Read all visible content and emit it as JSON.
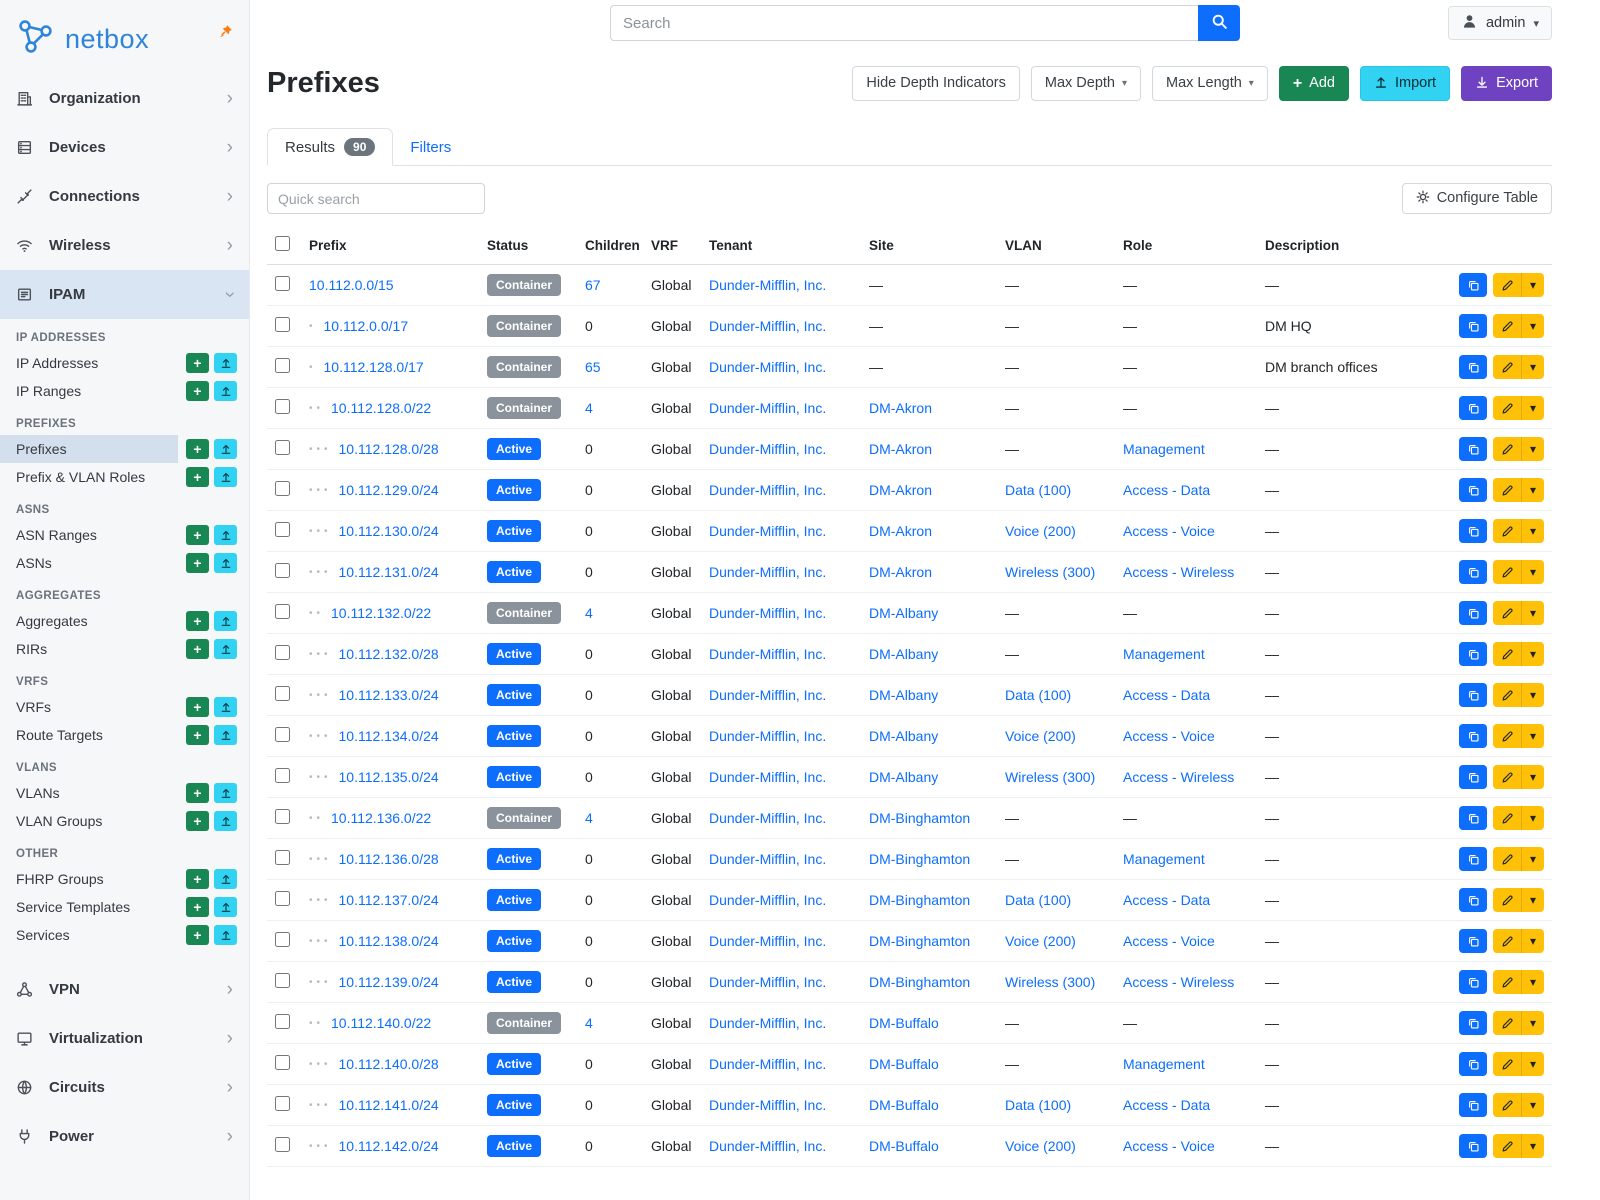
{
  "brand": {
    "name": "netbox"
  },
  "topbar": {
    "search_placeholder": "Search",
    "user": "admin"
  },
  "sidebar": {
    "top_items": [
      {
        "label": "Organization",
        "icon": "organization-icon"
      },
      {
        "label": "Devices",
        "icon": "devices-icon"
      },
      {
        "label": "Connections",
        "icon": "connections-icon"
      },
      {
        "label": "Wireless",
        "icon": "wireless-icon"
      }
    ],
    "ipam": {
      "label": "IPAM",
      "icon": "ipam-icon",
      "groups": [
        {
          "heading": "IP ADDRESSES",
          "items": [
            {
              "label": "IP Addresses"
            },
            {
              "label": "IP Ranges"
            }
          ]
        },
        {
          "heading": "PREFIXES",
          "items": [
            {
              "label": "Prefixes",
              "active": true
            },
            {
              "label": "Prefix & VLAN Roles"
            }
          ]
        },
        {
          "heading": "ASNS",
          "items": [
            {
              "label": "ASN Ranges"
            },
            {
              "label": "ASNs"
            }
          ]
        },
        {
          "heading": "AGGREGATES",
          "items": [
            {
              "label": "Aggregates"
            },
            {
              "label": "RIRs"
            }
          ]
        },
        {
          "heading": "VRFS",
          "items": [
            {
              "label": "VRFs"
            },
            {
              "label": "Route Targets"
            }
          ]
        },
        {
          "heading": "VLANS",
          "items": [
            {
              "label": "VLANs"
            },
            {
              "label": "VLAN Groups"
            }
          ]
        },
        {
          "heading": "OTHER",
          "items": [
            {
              "label": "FHRP Groups"
            },
            {
              "label": "Service Templates"
            },
            {
              "label": "Services"
            }
          ]
        }
      ]
    },
    "bottom_items": [
      {
        "label": "VPN",
        "icon": "vpn-icon"
      },
      {
        "label": "Virtualization",
        "icon": "virtualization-icon"
      },
      {
        "label": "Circuits",
        "icon": "circuits-icon"
      },
      {
        "label": "Power",
        "icon": "power-icon"
      }
    ]
  },
  "page": {
    "title": "Prefixes",
    "controls": {
      "hide_depth": "Hide Depth Indicators",
      "max_depth": "Max Depth",
      "max_length": "Max Length",
      "add": "Add",
      "import": "Import",
      "export": "Export"
    },
    "tabs": {
      "results_label": "Results",
      "results_count": "90",
      "filters_label": "Filters"
    },
    "quick_search_placeholder": "Quick search",
    "configure_table_label": "Configure Table"
  },
  "colors": {
    "accent_blue": "#0d6efd",
    "brand_blue": "#2f84d9",
    "pin_orange": "#fd7e14",
    "badge_container_gray": "#8a939b",
    "badge_active_blue": "#0d6efd",
    "add_green": "#198754",
    "import_cyan": "#31d2f2",
    "export_purple": "#6f42c1",
    "edit_yellow": "#ffc107",
    "ipam_highlight": "#d9e5f2"
  },
  "table": {
    "columns": [
      "Prefix",
      "Status",
      "Children",
      "VRF",
      "Tenant",
      "Site",
      "VLAN",
      "Role",
      "Description"
    ],
    "empty_value": "—",
    "rows": [
      {
        "prefix": "10.112.0.0/15",
        "depth": 0,
        "status": "Container",
        "children": "67",
        "vrf": "Global",
        "tenant": "Dunder-Mifflin, Inc.",
        "site": "",
        "vlan": "",
        "role": "",
        "description": ""
      },
      {
        "prefix": "10.112.0.0/17",
        "depth": 1,
        "status": "Container",
        "children": "0",
        "vrf": "Global",
        "tenant": "Dunder-Mifflin, Inc.",
        "site": "",
        "vlan": "",
        "role": "",
        "description": "DM HQ"
      },
      {
        "prefix": "10.112.128.0/17",
        "depth": 1,
        "status": "Container",
        "children": "65",
        "vrf": "Global",
        "tenant": "Dunder-Mifflin, Inc.",
        "site": "",
        "vlan": "",
        "role": "",
        "description": "DM branch offices"
      },
      {
        "prefix": "10.112.128.0/22",
        "depth": 2,
        "status": "Container",
        "children": "4",
        "vrf": "Global",
        "tenant": "Dunder-Mifflin, Inc.",
        "site": "DM-Akron",
        "vlan": "",
        "role": "",
        "description": ""
      },
      {
        "prefix": "10.112.128.0/28",
        "depth": 3,
        "status": "Active",
        "children": "0",
        "vrf": "Global",
        "tenant": "Dunder-Mifflin, Inc.",
        "site": "DM-Akron",
        "vlan": "",
        "role": "Management",
        "description": ""
      },
      {
        "prefix": "10.112.129.0/24",
        "depth": 3,
        "status": "Active",
        "children": "0",
        "vrf": "Global",
        "tenant": "Dunder-Mifflin, Inc.",
        "site": "DM-Akron",
        "vlan": "Data (100)",
        "role": "Access - Data",
        "description": ""
      },
      {
        "prefix": "10.112.130.0/24",
        "depth": 3,
        "status": "Active",
        "children": "0",
        "vrf": "Global",
        "tenant": "Dunder-Mifflin, Inc.",
        "site": "DM-Akron",
        "vlan": "Voice (200)",
        "role": "Access - Voice",
        "description": ""
      },
      {
        "prefix": "10.112.131.0/24",
        "depth": 3,
        "status": "Active",
        "children": "0",
        "vrf": "Global",
        "tenant": "Dunder-Mifflin, Inc.",
        "site": "DM-Akron",
        "vlan": "Wireless (300)",
        "role": "Access - Wireless",
        "description": ""
      },
      {
        "prefix": "10.112.132.0/22",
        "depth": 2,
        "status": "Container",
        "children": "4",
        "vrf": "Global",
        "tenant": "Dunder-Mifflin, Inc.",
        "site": "DM-Albany",
        "vlan": "",
        "role": "",
        "description": ""
      },
      {
        "prefix": "10.112.132.0/28",
        "depth": 3,
        "status": "Active",
        "children": "0",
        "vrf": "Global",
        "tenant": "Dunder-Mifflin, Inc.",
        "site": "DM-Albany",
        "vlan": "",
        "role": "Management",
        "description": ""
      },
      {
        "prefix": "10.112.133.0/24",
        "depth": 3,
        "status": "Active",
        "children": "0",
        "vrf": "Global",
        "tenant": "Dunder-Mifflin, Inc.",
        "site": "DM-Albany",
        "vlan": "Data (100)",
        "role": "Access - Data",
        "description": ""
      },
      {
        "prefix": "10.112.134.0/24",
        "depth": 3,
        "status": "Active",
        "children": "0",
        "vrf": "Global",
        "tenant": "Dunder-Mifflin, Inc.",
        "site": "DM-Albany",
        "vlan": "Voice (200)",
        "role": "Access - Voice",
        "description": ""
      },
      {
        "prefix": "10.112.135.0/24",
        "depth": 3,
        "status": "Active",
        "children": "0",
        "vrf": "Global",
        "tenant": "Dunder-Mifflin, Inc.",
        "site": "DM-Albany",
        "vlan": "Wireless (300)",
        "role": "Access - Wireless",
        "description": ""
      },
      {
        "prefix": "10.112.136.0/22",
        "depth": 2,
        "status": "Container",
        "children": "4",
        "vrf": "Global",
        "tenant": "Dunder-Mifflin, Inc.",
        "site": "DM-Binghamton",
        "vlan": "",
        "role": "",
        "description": ""
      },
      {
        "prefix": "10.112.136.0/28",
        "depth": 3,
        "status": "Active",
        "children": "0",
        "vrf": "Global",
        "tenant": "Dunder-Mifflin, Inc.",
        "site": "DM-Binghamton",
        "vlan": "",
        "role": "Management",
        "description": ""
      },
      {
        "prefix": "10.112.137.0/24",
        "depth": 3,
        "status": "Active",
        "children": "0",
        "vrf": "Global",
        "tenant": "Dunder-Mifflin, Inc.",
        "site": "DM-Binghamton",
        "vlan": "Data (100)",
        "role": "Access - Data",
        "description": ""
      },
      {
        "prefix": "10.112.138.0/24",
        "depth": 3,
        "status": "Active",
        "children": "0",
        "vrf": "Global",
        "tenant": "Dunder-Mifflin, Inc.",
        "site": "DM-Binghamton",
        "vlan": "Voice (200)",
        "role": "Access - Voice",
        "description": ""
      },
      {
        "prefix": "10.112.139.0/24",
        "depth": 3,
        "status": "Active",
        "children": "0",
        "vrf": "Global",
        "tenant": "Dunder-Mifflin, Inc.",
        "site": "DM-Binghamton",
        "vlan": "Wireless (300)",
        "role": "Access - Wireless",
        "description": ""
      },
      {
        "prefix": "10.112.140.0/22",
        "depth": 2,
        "status": "Container",
        "children": "4",
        "vrf": "Global",
        "tenant": "Dunder-Mifflin, Inc.",
        "site": "DM-Buffalo",
        "vlan": "",
        "role": "",
        "description": ""
      },
      {
        "prefix": "10.112.140.0/28",
        "depth": 3,
        "status": "Active",
        "children": "0",
        "vrf": "Global",
        "tenant": "Dunder-Mifflin, Inc.",
        "site": "DM-Buffalo",
        "vlan": "",
        "role": "Management",
        "description": ""
      },
      {
        "prefix": "10.112.141.0/24",
        "depth": 3,
        "status": "Active",
        "children": "0",
        "vrf": "Global",
        "tenant": "Dunder-Mifflin, Inc.",
        "site": "DM-Buffalo",
        "vlan": "Data (100)",
        "role": "Access - Data",
        "description": ""
      },
      {
        "prefix": "10.112.142.0/24",
        "depth": 3,
        "status": "Active",
        "children": "0",
        "vrf": "Global",
        "tenant": "Dunder-Mifflin, Inc.",
        "site": "DM-Buffalo",
        "vlan": "Voice (200)",
        "role": "Access - Voice",
        "description": ""
      }
    ]
  }
}
